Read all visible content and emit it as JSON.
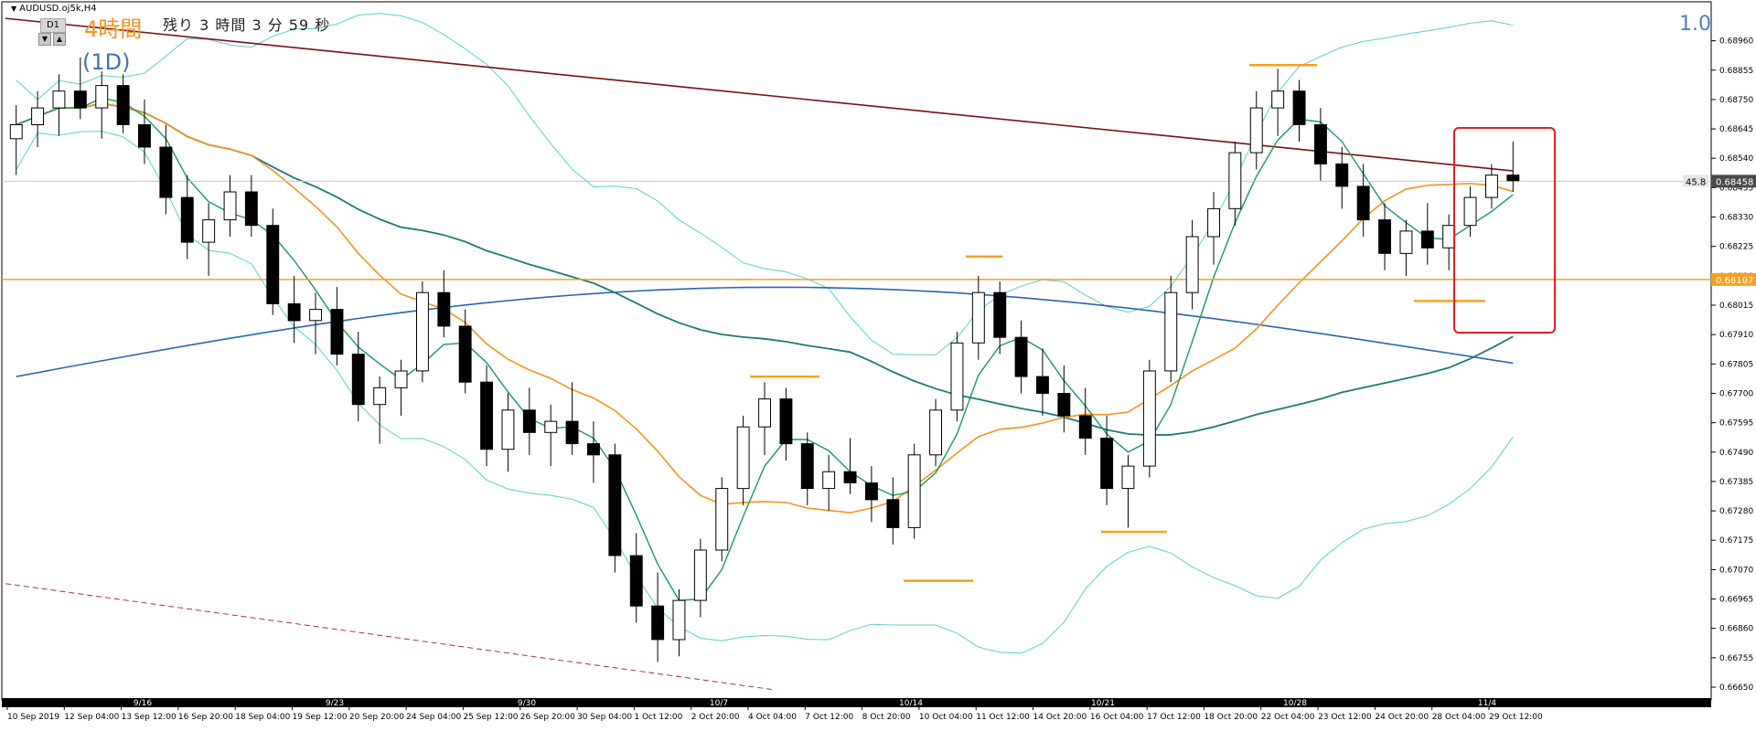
{
  "header": {
    "symbol": "AUDUSD.oj5k,H4",
    "timeframe_badge": "D1",
    "timeframe_label": "4時間",
    "countdown": "残り 3 時間 3 分 59 秒",
    "period_label": "(1D)",
    "scale_label": "1.0",
    "nav_down_icon": "triangle-down-icon",
    "nav_up_icon": "triangle-up-icon"
  },
  "price_axis": {
    "ticks": [
      "0.68960",
      "0.68855",
      "0.68750",
      "0.68645",
      "0.68540",
      "0.68435",
      "0.68330",
      "0.68225",
      "0.68120",
      "0.68015",
      "0.67910",
      "0.67805",
      "0.67700",
      "0.67595",
      "0.67490",
      "0.67385",
      "0.67280",
      "0.67175",
      "0.67070",
      "0.66965",
      "0.66860",
      "0.66755",
      "0.66650"
    ],
    "current_price": "0.68458",
    "current_price_prefix": "45.8",
    "hline_price": "0.68107"
  },
  "time_axis": {
    "labels": [
      "10 Sep 2019",
      "12 Sep 04:00",
      "13 Sep 12:00",
      "16 Sep 20:00",
      "18 Sep 04:00",
      "19 Sep 12:00",
      "20 Sep 20:00",
      "24 Sep 04:00",
      "25 Sep 12:00",
      "26 Sep 20:00",
      "30 Sep 04:00",
      "1 Oct 12:00",
      "2 Oct 20:00",
      "4 Oct 04:00",
      "7 Oct 12:00",
      "8 Oct 20:00",
      "10 Oct 04:00",
      "11 Oct 12:00",
      "14 Oct 20:00",
      "16 Oct 04:00",
      "17 Oct 12:00",
      "18 Oct 20:00",
      "22 Oct 04:00",
      "23 Oct 12:00",
      "24 Oct 20:00",
      "28 Oct 04:00",
      "29 Oct 12:00"
    ],
    "week_labels": [
      "9/16",
      "9/23",
      "9/30",
      "10/7",
      "10/14",
      "10/21",
      "10/28",
      "11/4"
    ]
  },
  "colors": {
    "bullish": "#ffffff",
    "bearish": "#000000",
    "ma_fast": "#1a9a5a",
    "ma_mid": "#f7931e",
    "ma_slow": "#1d7a78",
    "ma_long": "#2a66b0",
    "ma_200": "#7a1010",
    "bollinger": "#5bd0c8",
    "hline": "#f7a020",
    "highlight_box": "#e02020",
    "pivot_marks": "#f7a020"
  },
  "chart_data": {
    "type": "candlestick",
    "title": "",
    "symbol": "AUDUSD.oj5k",
    "timeframe": "H4",
    "ylim": [
      0.6665,
      0.6906
    ],
    "grid": false,
    "candles_ohlc_approx": [
      [
        0.6861,
        0.6873,
        0.6848,
        0.6866
      ],
      [
        0.6866,
        0.6878,
        0.6858,
        0.6872
      ],
      [
        0.6872,
        0.6884,
        0.6862,
        0.6878
      ],
      [
        0.6878,
        0.689,
        0.6868,
        0.6872
      ],
      [
        0.6872,
        0.6885,
        0.6861,
        0.688
      ],
      [
        0.688,
        0.6884,
        0.6863,
        0.6866
      ],
      [
        0.6866,
        0.6875,
        0.6852,
        0.6858
      ],
      [
        0.6858,
        0.6866,
        0.6834,
        0.684
      ],
      [
        0.684,
        0.6848,
        0.6818,
        0.6824
      ],
      [
        0.6824,
        0.6838,
        0.6812,
        0.6832
      ],
      [
        0.6832,
        0.6848,
        0.6826,
        0.6842
      ],
      [
        0.6842,
        0.6848,
        0.6826,
        0.683
      ],
      [
        0.683,
        0.6836,
        0.6798,
        0.6802
      ],
      [
        0.6802,
        0.6812,
        0.6788,
        0.6796
      ],
      [
        0.6796,
        0.6806,
        0.6784,
        0.68
      ],
      [
        0.68,
        0.6808,
        0.678,
        0.6784
      ],
      [
        0.6784,
        0.6792,
        0.676,
        0.6766
      ],
      [
        0.6766,
        0.6776,
        0.6752,
        0.6772
      ],
      [
        0.6772,
        0.6782,
        0.6762,
        0.6778
      ],
      [
        0.6778,
        0.681,
        0.6774,
        0.6806
      ],
      [
        0.6806,
        0.6814,
        0.679,
        0.6794
      ],
      [
        0.6794,
        0.68,
        0.677,
        0.6774
      ],
      [
        0.6774,
        0.678,
        0.6744,
        0.675
      ],
      [
        0.675,
        0.677,
        0.6742,
        0.6764
      ],
      [
        0.6764,
        0.6772,
        0.6748,
        0.6756
      ],
      [
        0.6756,
        0.6766,
        0.6744,
        0.676
      ],
      [
        0.676,
        0.6774,
        0.6748,
        0.6752
      ],
      [
        0.6752,
        0.676,
        0.6738,
        0.6748
      ],
      [
        0.6748,
        0.6752,
        0.6706,
        0.6712
      ],
      [
        0.6712,
        0.672,
        0.6688,
        0.6694
      ],
      [
        0.6694,
        0.6706,
        0.6674,
        0.6682
      ],
      [
        0.6682,
        0.67,
        0.6676,
        0.6696
      ],
      [
        0.6696,
        0.6718,
        0.669,
        0.6714
      ],
      [
        0.6714,
        0.674,
        0.671,
        0.6736
      ],
      [
        0.6736,
        0.6762,
        0.673,
        0.6758
      ],
      [
        0.6758,
        0.6774,
        0.6748,
        0.6768
      ],
      [
        0.6768,
        0.6772,
        0.6746,
        0.6752
      ],
      [
        0.6752,
        0.6756,
        0.673,
        0.6736
      ],
      [
        0.6736,
        0.6748,
        0.6728,
        0.6742
      ],
      [
        0.6742,
        0.6754,
        0.6734,
        0.6738
      ],
      [
        0.6738,
        0.6744,
        0.6724,
        0.6732
      ],
      [
        0.6732,
        0.674,
        0.6716,
        0.6722
      ],
      [
        0.6722,
        0.6752,
        0.6718,
        0.6748
      ],
      [
        0.6748,
        0.6768,
        0.6744,
        0.6764
      ],
      [
        0.6764,
        0.6792,
        0.676,
        0.6788
      ],
      [
        0.6788,
        0.6812,
        0.6782,
        0.6806
      ],
      [
        0.6806,
        0.681,
        0.6784,
        0.679
      ],
      [
        0.679,
        0.6796,
        0.677,
        0.6776
      ],
      [
        0.6776,
        0.6786,
        0.6762,
        0.677
      ],
      [
        0.677,
        0.678,
        0.6756,
        0.6762
      ],
      [
        0.6762,
        0.6772,
        0.6748,
        0.6754
      ],
      [
        0.6754,
        0.6762,
        0.673,
        0.6736
      ],
      [
        0.6736,
        0.6748,
        0.6722,
        0.6744
      ],
      [
        0.6744,
        0.6782,
        0.674,
        0.6778
      ],
      [
        0.6778,
        0.6812,
        0.6774,
        0.6806
      ],
      [
        0.6806,
        0.6832,
        0.68,
        0.6826
      ],
      [
        0.6826,
        0.6842,
        0.6816,
        0.6836
      ],
      [
        0.6836,
        0.686,
        0.683,
        0.6856
      ],
      [
        0.6856,
        0.6878,
        0.685,
        0.6872
      ],
      [
        0.6872,
        0.6886,
        0.6862,
        0.6878
      ],
      [
        0.6878,
        0.6882,
        0.686,
        0.6866
      ],
      [
        0.6866,
        0.6872,
        0.6846,
        0.6852
      ],
      [
        0.6852,
        0.6858,
        0.6836,
        0.6844
      ],
      [
        0.6844,
        0.6852,
        0.6826,
        0.6832
      ],
      [
        0.6832,
        0.6838,
        0.6814,
        0.682
      ],
      [
        0.682,
        0.6832,
        0.6812,
        0.6828
      ],
      [
        0.6828,
        0.6838,
        0.6816,
        0.6822
      ],
      [
        0.6822,
        0.6834,
        0.6814,
        0.683
      ],
      [
        0.683,
        0.6844,
        0.6826,
        0.684
      ],
      [
        0.684,
        0.6852,
        0.6836,
        0.6848
      ],
      [
        0.6848,
        0.686,
        0.6842,
        0.6846
      ]
    ],
    "series": [
      {
        "type": "line",
        "role": "fast moving average"
      },
      {
        "type": "line",
        "role": "medium moving average"
      },
      {
        "type": "line",
        "role": "slow moving average"
      },
      {
        "type": "line",
        "role": "long moving average"
      },
      {
        "type": "line",
        "role": "200 moving average (solid dark red, dashed lower)"
      },
      {
        "type": "band",
        "role": "bollinger bands"
      }
    ],
    "horizontal_line": 0.68107,
    "current_price": 0.68458,
    "annotations": [
      {
        "kind": "support/resistance marks",
        "color": "orange"
      },
      {
        "kind": "highlight box",
        "color": "red",
        "location": "right edge, latest candles"
      }
    ]
  }
}
